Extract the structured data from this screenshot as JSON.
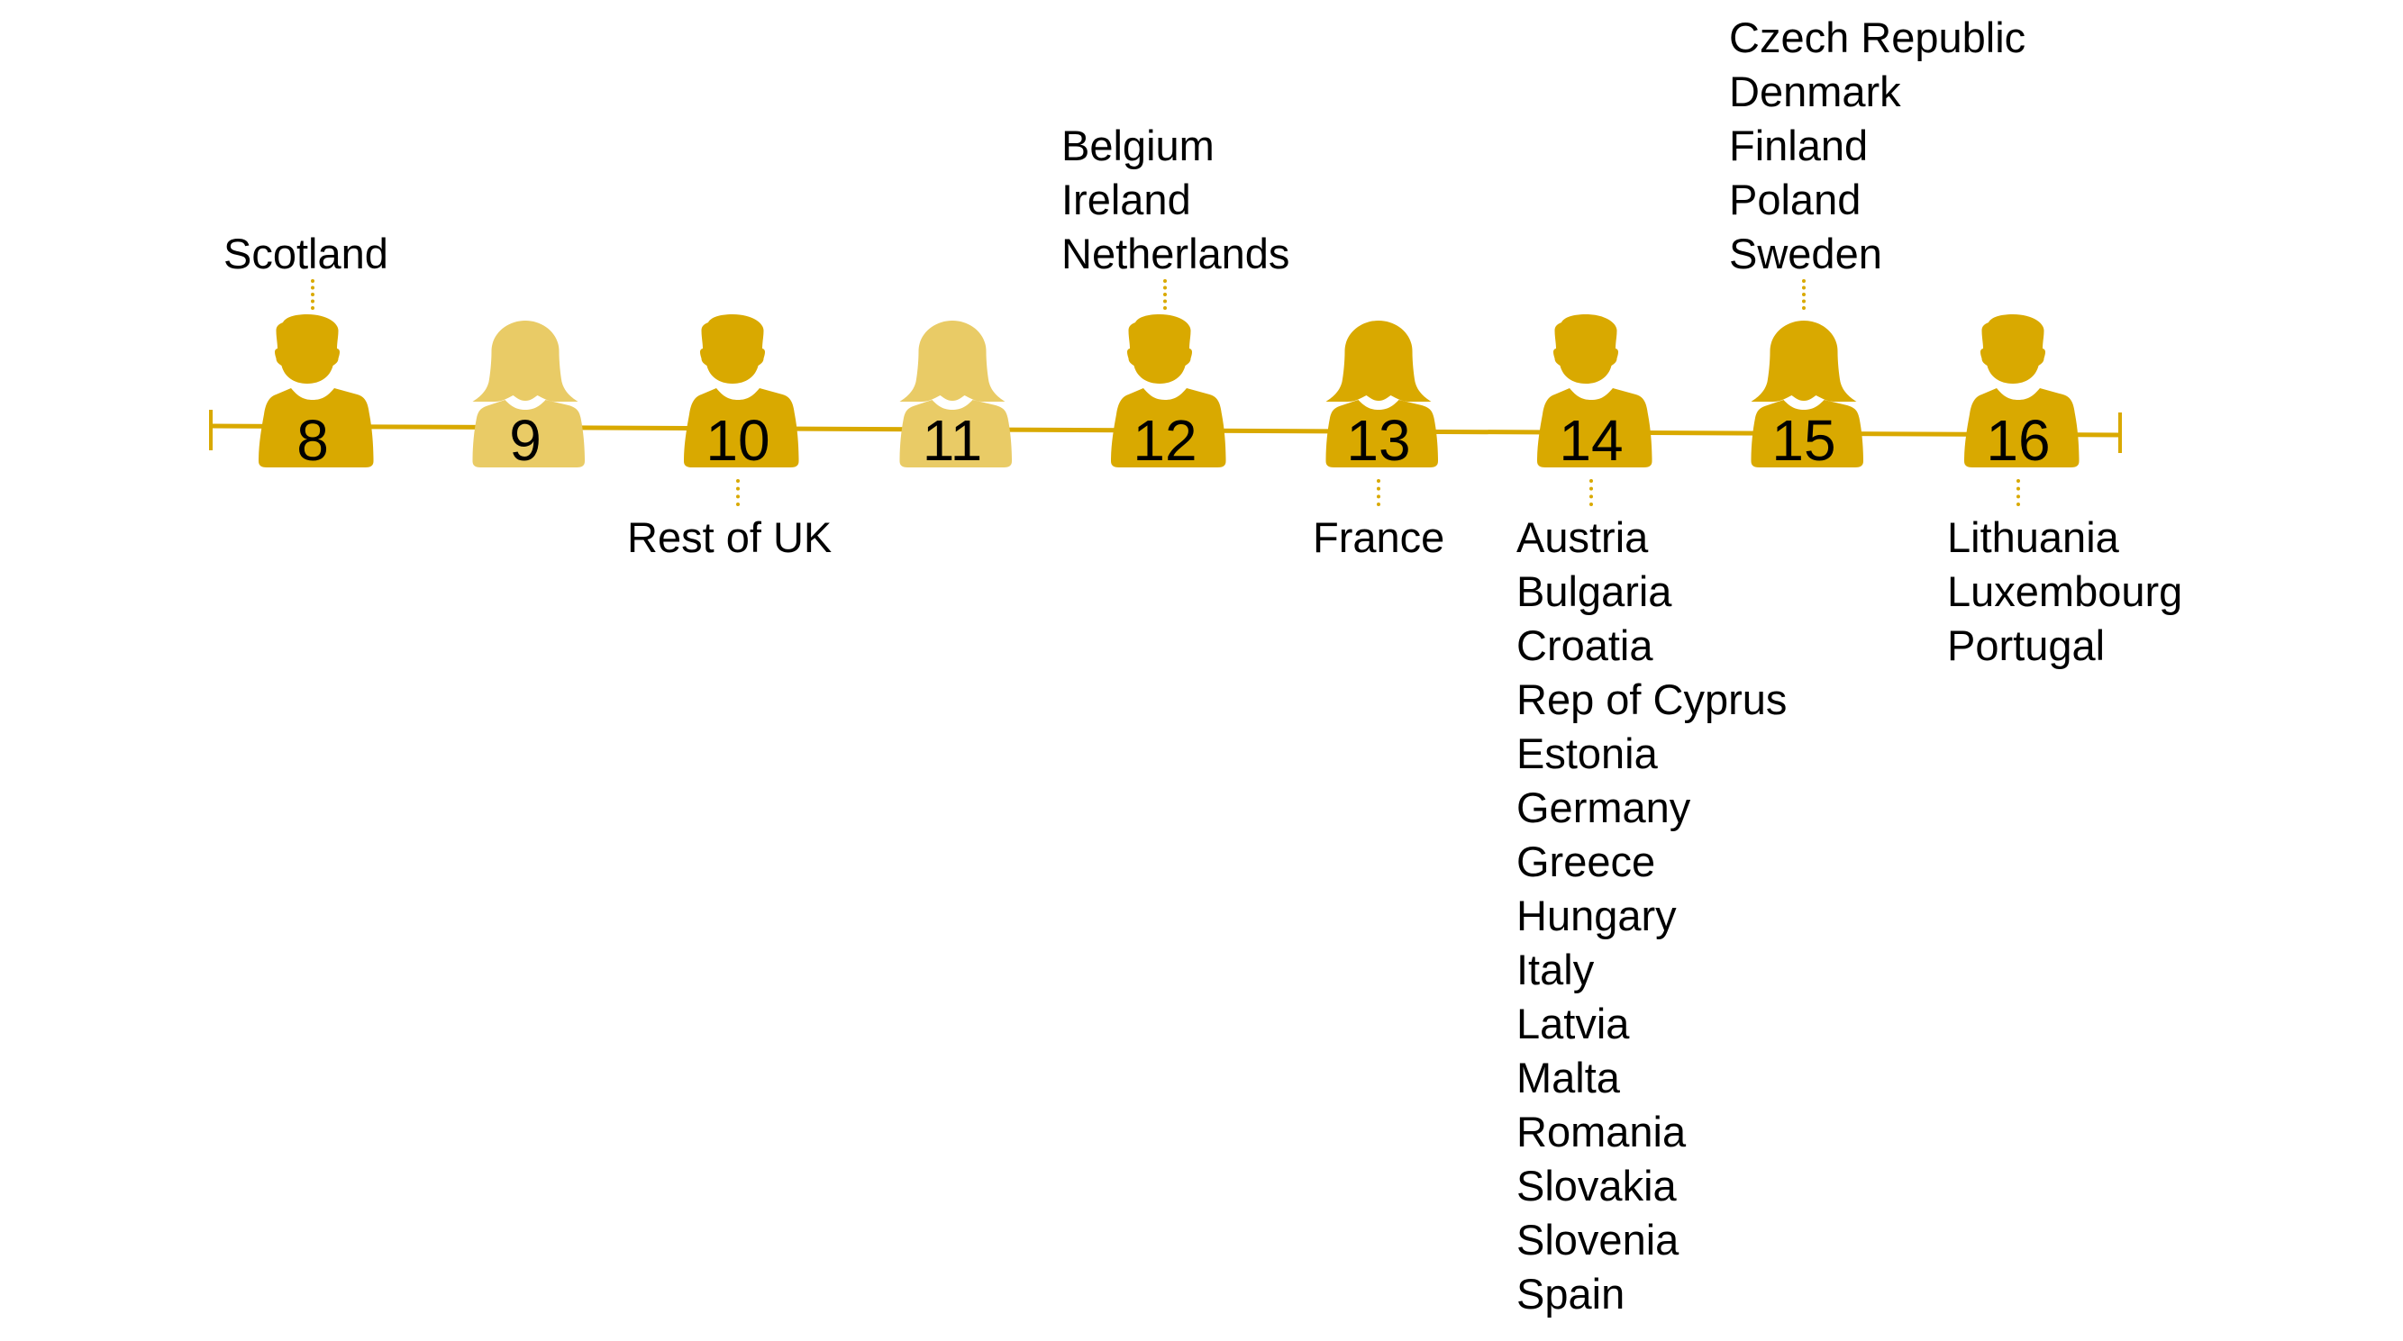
{
  "colors": {
    "dark": "#D9A900",
    "light": "#E9CB66",
    "line": "#D9A900"
  },
  "groups": [
    {
      "value": "8",
      "figure": "male",
      "shade": "dark",
      "position": "above",
      "countries": [
        "Scotland"
      ]
    },
    {
      "value": "9",
      "figure": "female",
      "shade": "light",
      "position": "none",
      "countries": []
    },
    {
      "value": "10",
      "figure": "male",
      "shade": "dark",
      "position": "below",
      "countries": [
        "Rest of UK"
      ]
    },
    {
      "value": "11",
      "figure": "female",
      "shade": "light",
      "position": "none",
      "countries": []
    },
    {
      "value": "12",
      "figure": "male",
      "shade": "dark",
      "position": "above",
      "countries": [
        "Belgium",
        "Ireland",
        "Netherlands"
      ]
    },
    {
      "value": "13",
      "figure": "female",
      "shade": "dark",
      "position": "below",
      "countries": [
        "France"
      ]
    },
    {
      "value": "14",
      "figure": "male",
      "shade": "dark",
      "position": "below",
      "countries": [
        "Austria",
        "Bulgaria",
        "Croatia",
        "Rep of Cyprus",
        "Estonia",
        "Germany",
        "Greece",
        "Hungary",
        "Italy",
        "Latvia",
        "Malta",
        "Romania",
        "Slovakia",
        "Slovenia",
        "Spain"
      ]
    },
    {
      "value": "15",
      "figure": "female",
      "shade": "dark",
      "position": "above",
      "countries": [
        "Czech Republic",
        "Denmark",
        "Finland",
        "Poland",
        "Sweden"
      ]
    },
    {
      "value": "16",
      "figure": "male",
      "shade": "dark",
      "position": "below",
      "countries": [
        "Lithuania",
        "Luxembourg",
        "Portugal"
      ]
    }
  ]
}
